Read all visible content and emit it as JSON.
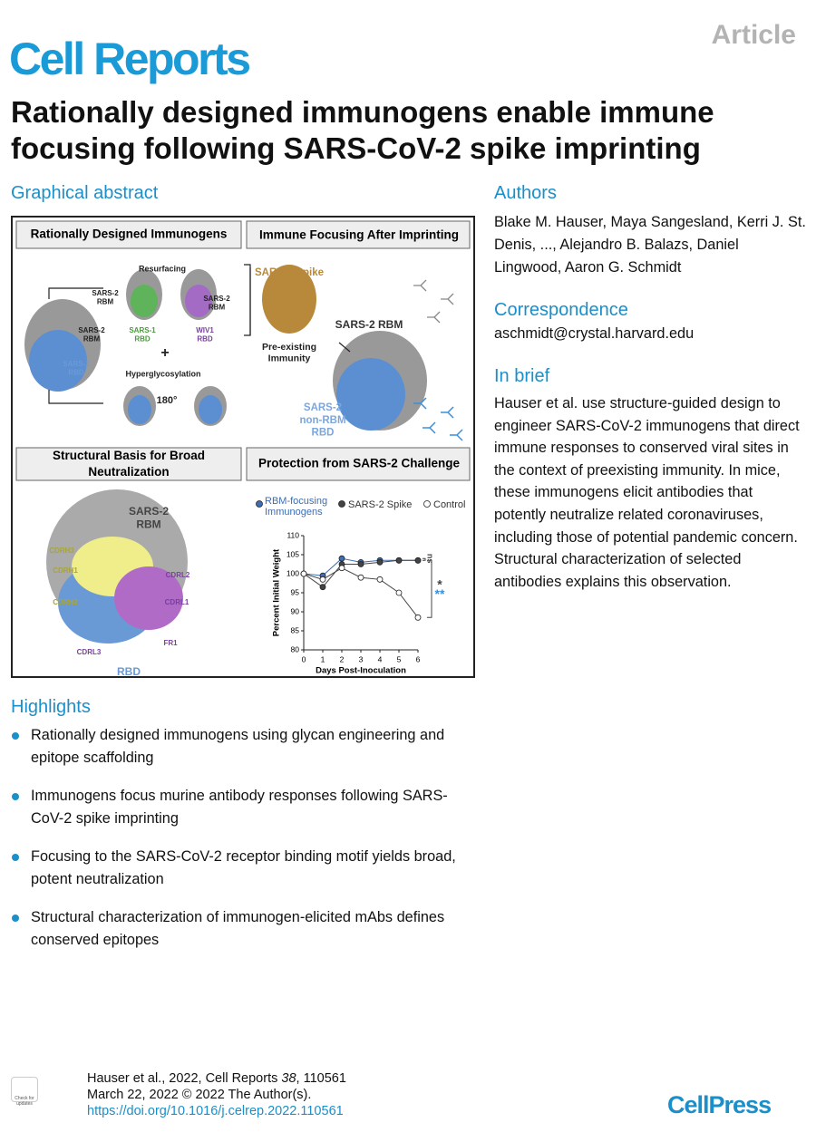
{
  "header": {
    "journal": "Cell Reports",
    "article_type": "Article"
  },
  "title": "Rationally designed immunogens enable immune focusing following SARS-CoV-2 spike imprinting",
  "graphical_abstract": {
    "heading": "Graphical abstract",
    "panels": [
      "Rationally Designed Immunogens",
      "Immune Focusing After Imprinting",
      "Structural Basis for Broad Neutralization",
      "Protection from SARS-2 Challenge"
    ],
    "labels": [
      {
        "lines": [
          "Resurfacing"
        ]
      },
      {
        "lines": [
          "SARS-2",
          "RBM"
        ]
      },
      {
        "lines": [
          "SARS-2",
          "RBM"
        ]
      },
      {
        "lines": [
          "SARS-1",
          "RBD"
        ]
      },
      {
        "lines": [
          "WIV1",
          "RBD"
        ]
      },
      {
        "lines": [
          "SARS-2",
          "RBM"
        ]
      },
      {
        "lines": [
          "SARS-2",
          "RBD"
        ]
      },
      {
        "lines": [
          "+"
        ]
      },
      {
        "lines": [
          "Hyperglycosylation"
        ]
      },
      {
        "lines": [
          "180°"
        ]
      },
      {
        "lines": [
          "SARS-2 Spike"
        ]
      },
      {
        "lines": [
          "Pre-existing",
          "Immunity"
        ]
      },
      {
        "lines": [
          "SARS-2 RBM"
        ]
      },
      {
        "lines": [
          "SARS-2",
          "non-RBM",
          "RBD"
        ]
      },
      {
        "lines": [
          "SARS-2",
          "RBM"
        ]
      },
      {
        "lines": [
          "CDRH3"
        ]
      },
      {
        "lines": [
          "CDRH1"
        ]
      },
      {
        "lines": [
          "CDRH2"
        ]
      },
      {
        "lines": [
          "CDRL2"
        ]
      },
      {
        "lines": [
          "CDRL1"
        ]
      },
      {
        "lines": [
          "FR1"
        ]
      },
      {
        "lines": [
          "CDRL3"
        ]
      },
      {
        "lines": [
          "RBD"
        ]
      }
    ]
  },
  "chart_data": {
    "type": "line",
    "x_label": "Days Post-Inoculation",
    "y_label": "Percent Initial Weight",
    "x": [
      0,
      1,
      2,
      3,
      4,
      5,
      6
    ],
    "series": [
      {
        "name": "RBM-focusing Immunogens",
        "color": "#3d6db3",
        "marker": "filled",
        "values": [
          100,
          99.5,
          104,
          103,
          103.5,
          103.5,
          103.5
        ]
      },
      {
        "name": "SARS-2 Spike",
        "color": "#444444",
        "marker": "filled",
        "values": [
          100,
          96.5,
          102.5,
          102.5,
          103,
          103.5,
          103.5
        ]
      },
      {
        "name": "Control",
        "color": "#444444",
        "marker": "open",
        "values": [
          100,
          98.5,
          101.5,
          99,
          98.5,
          95,
          88.5
        ]
      }
    ],
    "xlim": [
      0,
      6
    ],
    "ylim": [
      80,
      110
    ],
    "xticks": [
      0,
      1,
      2,
      3,
      4,
      5,
      6
    ],
    "yticks": [
      80,
      85,
      90,
      95,
      100,
      105,
      110
    ],
    "annotations": [
      "ns",
      "*",
      "**"
    ]
  },
  "authors": {
    "heading": "Authors",
    "names": "Blake M. Hauser, Maya Sangesland, Kerri J. St. Denis, ..., Alejandro B. Balazs, Daniel Lingwood, Aaron G. Schmidt"
  },
  "correspondence": {
    "heading": "Correspondence",
    "email": "aschmidt@crystal.harvard.edu"
  },
  "in_brief": {
    "heading": "In brief",
    "text": "Hauser et al. use structure-guided design to engineer SARS-CoV-2 immunogens that direct immune responses to conserved viral sites in the context of preexisting immunity. In mice, these immunogens elicit antibodies that potently neutralize related coronaviruses, including those of potential pandemic concern. Structural characterization of selected antibodies explains this observation."
  },
  "highlights": {
    "heading": "Highlights",
    "items": [
      "Rationally designed immunogens using glycan engineering and epitope scaffolding",
      "Immunogens focus murine antibody responses following SARS-CoV-2 spike imprinting",
      "Focusing to the SARS-CoV-2 receptor binding motif yields broad, potent neutralization",
      "Structural characterization of immunogen-elicited mAbs defines conserved epitopes"
    ]
  },
  "citation": {
    "authors_year": "Hauser et al., 2022, Cell Reports",
    "volume": "38",
    "article_number": ", 110561",
    "date_line": "March 22, 2022 © 2022 The Author(s).",
    "doi": "https://doi.org/10.1016/j.celrep.2022.110561"
  },
  "footer": {
    "badge": "Check for updates",
    "publisher": "CellPress"
  }
}
